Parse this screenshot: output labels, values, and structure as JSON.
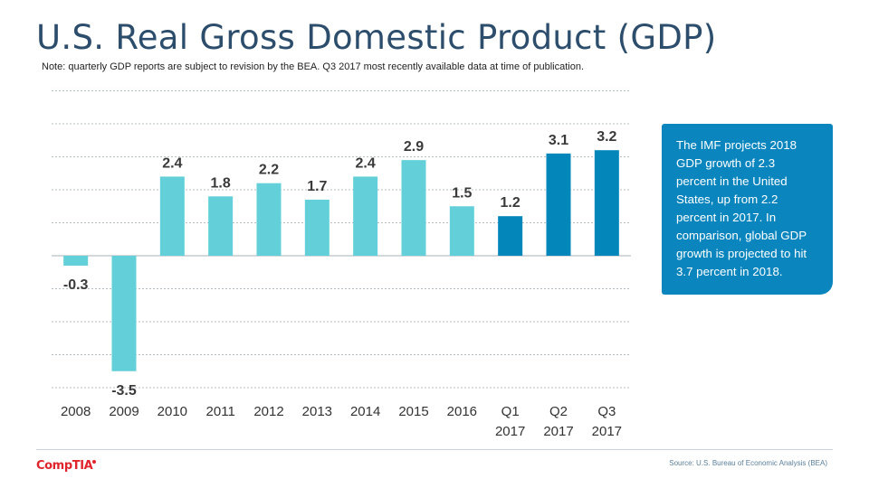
{
  "title": "U.S. Real Gross Domestic Product (GDP)",
  "note": "Note:  quarterly GDP reports are subject to revision by the BEA.  Q3 2017 most recently available data at time of publication.",
  "callout": "The IMF projects 2018 GDP growth of 2.3 percent in the United States, up from  2.2 percent in 2017. In comparison, global GDP growth is projected to hit 3.7 percent in 2018.",
  "source": "Source: U.S. Bureau of Economic Analysis (BEA)",
  "logo": "CompTIA",
  "colors": {
    "annual": "#63d0d9",
    "quarterly": "#0387bb",
    "title": "#2c4d6b",
    "callout": "#0a85bd",
    "logo": "#e0242b"
  },
  "chart_data": {
    "type": "bar",
    "title": "",
    "xlabel": "",
    "ylabel": "",
    "categories": [
      [
        "2008"
      ],
      [
        "2009"
      ],
      [
        "2010"
      ],
      [
        "2011"
      ],
      [
        "2012"
      ],
      [
        "2013"
      ],
      [
        "2014"
      ],
      [
        "2015"
      ],
      [
        "2016"
      ],
      [
        "Q1",
        "2017"
      ],
      [
        "Q2",
        "2017"
      ],
      [
        "Q3",
        "2017"
      ]
    ],
    "values": [
      -0.3,
      -3.5,
      2.4,
      1.8,
      2.2,
      1.7,
      2.4,
      2.9,
      1.5,
      1.2,
      3.1,
      3.2
    ],
    "data_labels": [
      "-0.3",
      "-3.5",
      "2.4",
      "1.8",
      "2.2",
      "1.7",
      "2.4",
      "2.9",
      "1.5",
      "1.2",
      "3.1",
      "3.2"
    ],
    "bar_groups": [
      "annual",
      "annual",
      "annual",
      "annual",
      "annual",
      "annual",
      "annual",
      "annual",
      "annual",
      "quarterly",
      "quarterly",
      "quarterly"
    ],
    "ylim": [
      -4,
      5
    ],
    "gridline_step": 1,
    "grid": true,
    "axis_tick_labels": false,
    "legend": "none"
  }
}
